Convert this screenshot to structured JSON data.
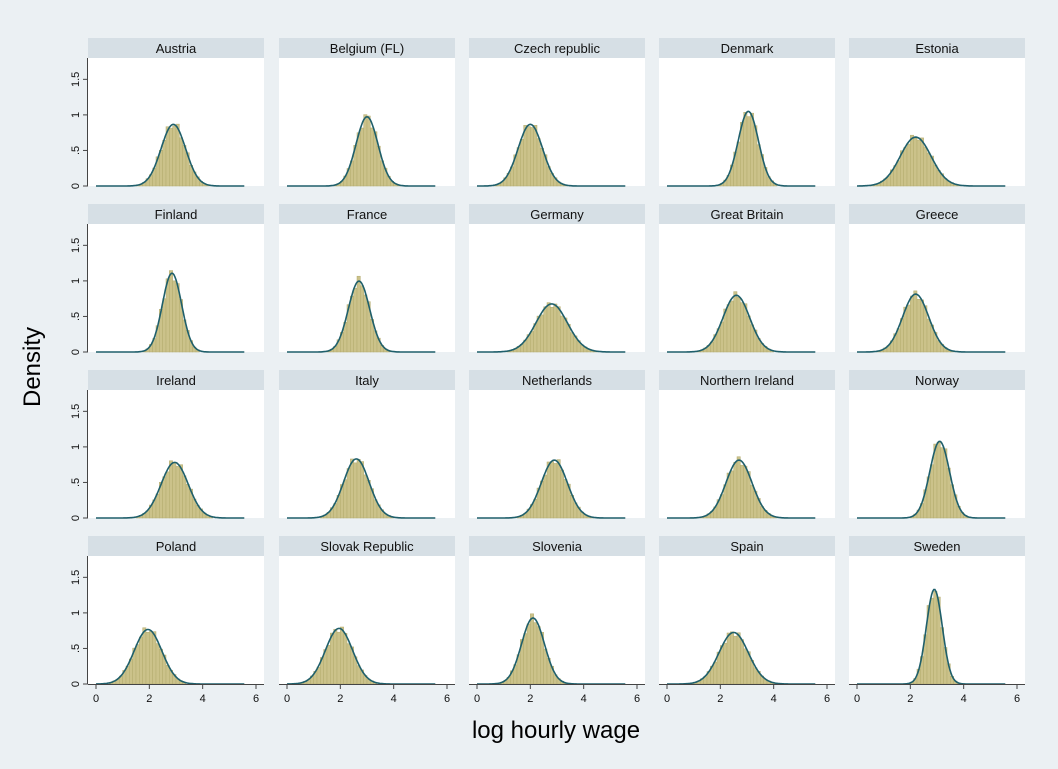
{
  "chart_data": {
    "type": "histogram-small-multiples",
    "ylabel": "Density",
    "xlabel": "log hourly wage",
    "xlim": [
      -0.3,
      6.3
    ],
    "ylim": [
      0,
      1.8
    ],
    "x_ticks": [
      0,
      2,
      4,
      6
    ],
    "x_tick_labels": [
      "0",
      "2",
      "4",
      "6"
    ],
    "y_ticks": [
      0,
      0.5,
      1,
      1.5
    ],
    "y_tick_labels": [
      "0",
      ".5",
      "1",
      "1.5"
    ],
    "colors": {
      "background": "#ebf0f3",
      "panel_header": "#d6dfe5",
      "bar_fill": "#cbc28a",
      "bar_stroke": "#b3ab6e",
      "curve": "#1f5f6b",
      "axis": "#444444"
    },
    "grid": false,
    "panels": [
      {
        "name": "Austria",
        "mean": 2.9,
        "sd": 0.46
      },
      {
        "name": "Belgium (FL)",
        "mean": 3.0,
        "sd": 0.41
      },
      {
        "name": "Czech republic",
        "mean": 2.0,
        "sd": 0.46
      },
      {
        "name": "Denmark",
        "mean": 3.05,
        "sd": 0.38
      },
      {
        "name": "Estonia",
        "mean": 2.2,
        "sd": 0.58
      },
      {
        "name": "Finland",
        "mean": 2.85,
        "sd": 0.36
      },
      {
        "name": "France",
        "mean": 2.7,
        "sd": 0.4
      },
      {
        "name": "Germany",
        "mean": 2.8,
        "sd": 0.59
      },
      {
        "name": "Great Britain",
        "mean": 2.6,
        "sd": 0.5
      },
      {
        "name": "Greece",
        "mean": 2.2,
        "sd": 0.49
      },
      {
        "name": "Ireland",
        "mean": 2.95,
        "sd": 0.51
      },
      {
        "name": "Italy",
        "mean": 2.6,
        "sd": 0.48
      },
      {
        "name": "Netherlands",
        "mean": 2.9,
        "sd": 0.49
      },
      {
        "name": "Northern Ireland",
        "mean": 2.7,
        "sd": 0.49
      },
      {
        "name": "Norway",
        "mean": 3.1,
        "sd": 0.37
      },
      {
        "name": "Poland",
        "mean": 1.95,
        "sd": 0.52
      },
      {
        "name": "Slovak Republic",
        "mean": 1.95,
        "sd": 0.51
      },
      {
        "name": "Slovenia",
        "mean": 2.1,
        "sd": 0.43
      },
      {
        "name": "Spain",
        "mean": 2.5,
        "sd": 0.55
      },
      {
        "name": "Sweden",
        "mean": 2.9,
        "sd": 0.3
      }
    ]
  }
}
